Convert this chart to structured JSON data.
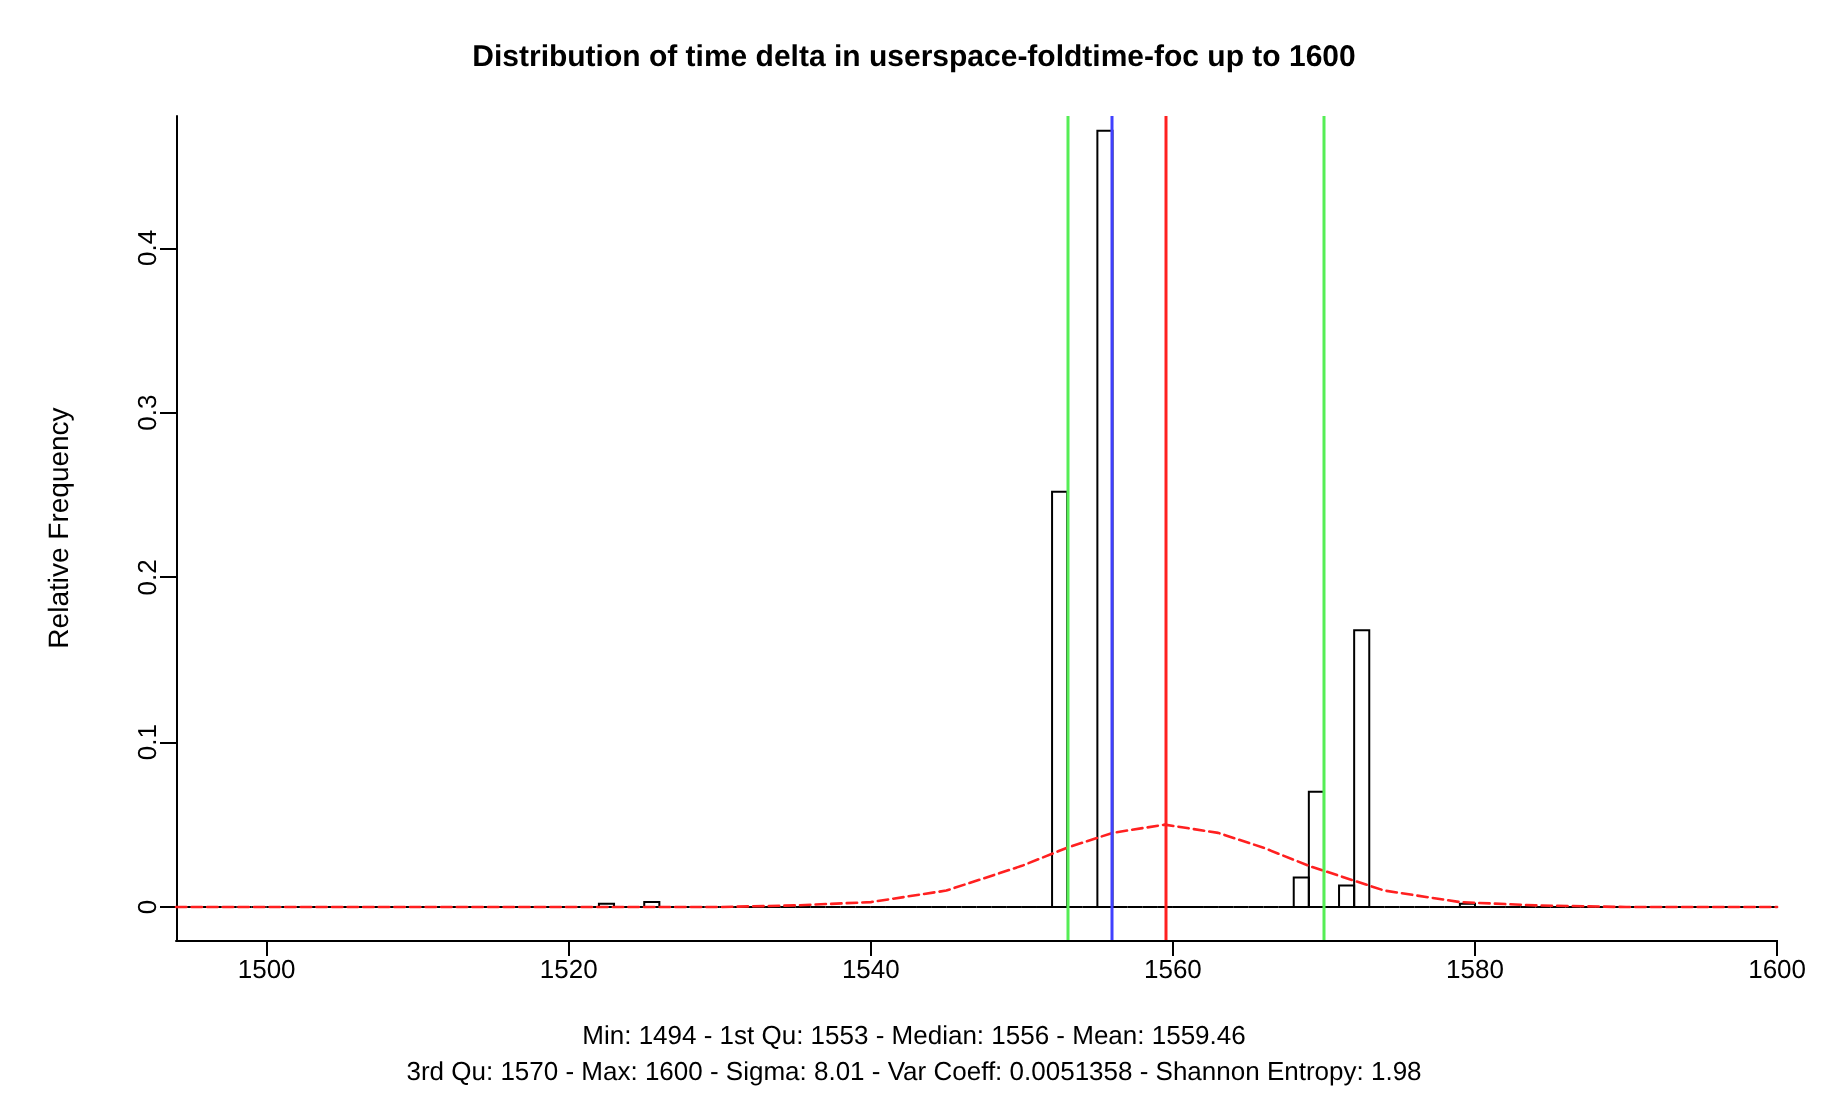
{
  "chart_data": {
    "type": "histogram",
    "title": "Distribution of time delta in userspace-foldtime-foc up to 1600",
    "ylabel": "Relative Frequency",
    "bins": [
      1494,
      1495,
      1496,
      1497,
      1498,
      1499,
      1500,
      1501,
      1502,
      1503,
      1504,
      1505,
      1506,
      1507,
      1508,
      1509,
      1510,
      1511,
      1512,
      1513,
      1514,
      1515,
      1516,
      1517,
      1518,
      1519,
      1520,
      1521,
      1522,
      1523,
      1524,
      1525,
      1526,
      1527,
      1528,
      1529,
      1530,
      1531,
      1532,
      1533,
      1534,
      1535,
      1536,
      1537,
      1538,
      1539,
      1540,
      1541,
      1542,
      1543,
      1544,
      1545,
      1546,
      1547,
      1548,
      1549,
      1550,
      1551,
      1552,
      1553,
      1554,
      1555,
      1556,
      1557,
      1558,
      1559,
      1560,
      1561,
      1562,
      1563,
      1564,
      1565,
      1566,
      1567,
      1568,
      1569,
      1570,
      1571,
      1572,
      1573,
      1574,
      1575,
      1576,
      1577,
      1578,
      1579,
      1580,
      1581,
      1582,
      1583,
      1584,
      1585,
      1586,
      1587,
      1588,
      1589,
      1590,
      1591,
      1592,
      1593,
      1594,
      1595,
      1596,
      1597,
      1598,
      1599,
      1600
    ],
    "values": [
      0,
      0,
      0,
      0,
      0,
      0,
      0,
      0,
      0,
      0,
      0,
      0,
      0,
      0,
      0,
      0,
      0,
      0,
      0,
      0,
      0,
      0,
      0,
      0,
      0,
      0,
      0,
      0,
      0.002,
      0,
      0,
      0.003,
      0,
      0,
      0,
      0,
      0,
      0,
      0,
      0,
      0,
      0,
      0,
      0,
      0,
      0,
      0,
      0,
      0,
      0,
      0,
      0,
      0,
      0,
      0,
      0,
      0,
      0,
      0.252,
      0,
      0,
      0.471,
      0,
      0,
      0,
      0,
      0,
      0,
      0,
      0,
      0,
      0,
      0,
      0,
      0.018,
      0.07,
      0,
      0.013,
      0.168,
      0,
      0,
      0,
      0,
      0,
      0,
      0.002,
      0,
      0,
      0,
      0,
      0,
      0,
      0,
      0,
      0,
      0,
      0,
      0,
      0,
      0,
      0,
      0,
      0,
      0,
      0,
      0
    ],
    "color": "#000000",
    "series": [
      {
        "type": "line",
        "color": "#ff2020",
        "line_style": "dashed",
        "marker": "none",
        "x": [
          1494,
          1520,
          1530,
          1535,
          1540,
          1545,
          1550,
          1553,
          1556,
          1559.46,
          1563,
          1566,
          1569,
          1574,
          1579,
          1584,
          1590,
          1600
        ],
        "values": [
          0,
          0,
          0,
          0.001,
          0.003,
          0.01,
          0.025,
          0.036,
          0.045,
          0.05,
          0.045,
          0.036,
          0.025,
          0.01,
          0.003,
          0.001,
          0,
          0
        ]
      }
    ],
    "xlim": [
      1494,
      1600
    ],
    "xticks": [
      1500,
      1520,
      1540,
      1560,
      1580,
      1600
    ],
    "ylim": [
      -0.02,
      0.48
    ],
    "yticks": [
      0,
      0.1,
      0.2,
      0.3,
      0.4
    ],
    "ref_lines": [
      {
        "axis": "x",
        "value": 1553,
        "color": "#55ee55"
      },
      {
        "axis": "x",
        "value": 1556,
        "color": "#4040ff"
      },
      {
        "axis": "x",
        "value": 1559.46,
        "color": "#ff2020"
      },
      {
        "axis": "x",
        "value": 1570,
        "color": "#55ee55"
      }
    ],
    "annotations": [
      "Min: 1494 - 1st Qu: 1553 - Median: 1556 - Mean: 1559.46",
      "3rd Qu: 1570 - Max: 1600 - Sigma: 8.01 - Var Coeff: 0.0051358 - Shannon Entropy: 1.98"
    ],
    "grid": false
  }
}
